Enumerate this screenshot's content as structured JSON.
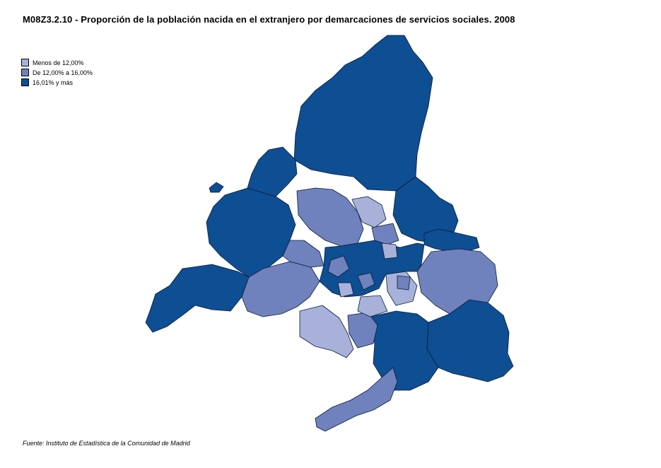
{
  "title": "M08Z3.2.10 - Proporción de la población nacida en el extranjero por demarcaciones de servicios sociales. 2008",
  "legend": [
    {
      "label": "Menos de 12,00%",
      "color": "#a8b1d9"
    },
    {
      "label": "De 12,00% a 16,00%",
      "color": "#6f82bd"
    },
    {
      "label": "16,01% y más",
      "color": "#0e4e92"
    }
  ],
  "source": "Fuente: Instituto de Estadística de la Comunidad de Madrid"
}
